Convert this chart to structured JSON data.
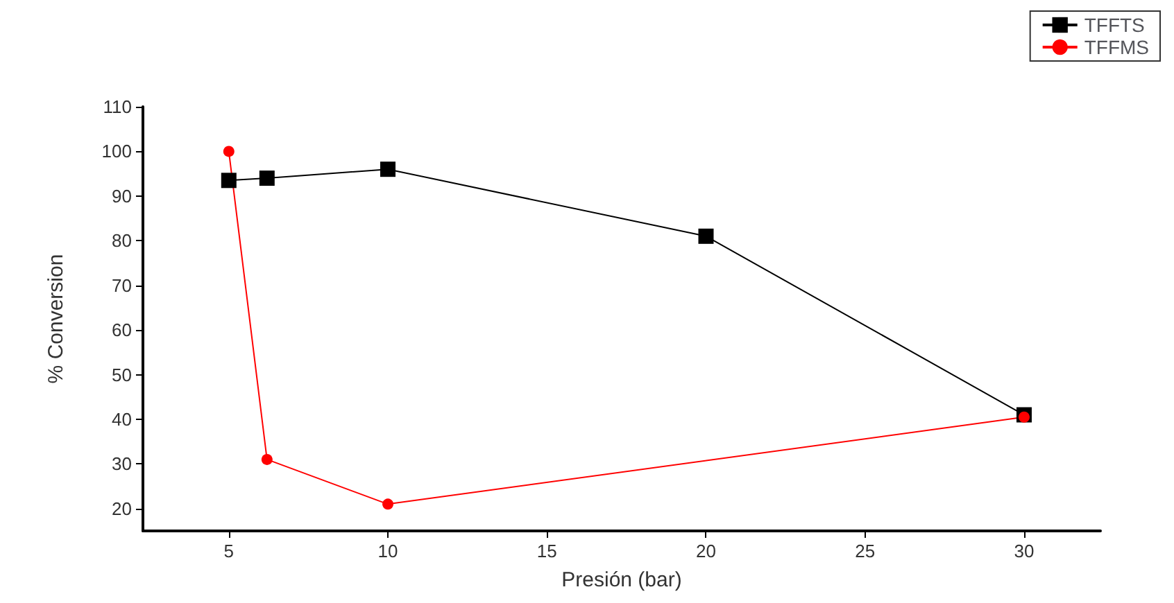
{
  "chart_data": {
    "type": "line",
    "xlabel": "Presión (bar)",
    "ylabel": "% Conversion",
    "xlim": [
      2.3,
      32.4
    ],
    "xticks": [
      5,
      10,
      15,
      20,
      25,
      30
    ],
    "ylim": [
      15,
      110
    ],
    "yticks": [
      20,
      30,
      40,
      50,
      60,
      70,
      80,
      90,
      100,
      110
    ],
    "grid": false,
    "legend": "top right",
    "line_style": "solid",
    "series": [
      {
        "name": "TFFTS",
        "color": "#000000",
        "marker": "square",
        "x": [
          5,
          6.2,
          10,
          20,
          30
        ],
        "values": [
          93.5,
          94,
          96,
          81,
          41
        ]
      },
      {
        "name": "TFFMS",
        "color": "#ff0000",
        "marker": "circle",
        "x": [
          5,
          6.2,
          10,
          30
        ],
        "values": [
          100,
          31,
          21,
          40.5
        ]
      }
    ]
  }
}
